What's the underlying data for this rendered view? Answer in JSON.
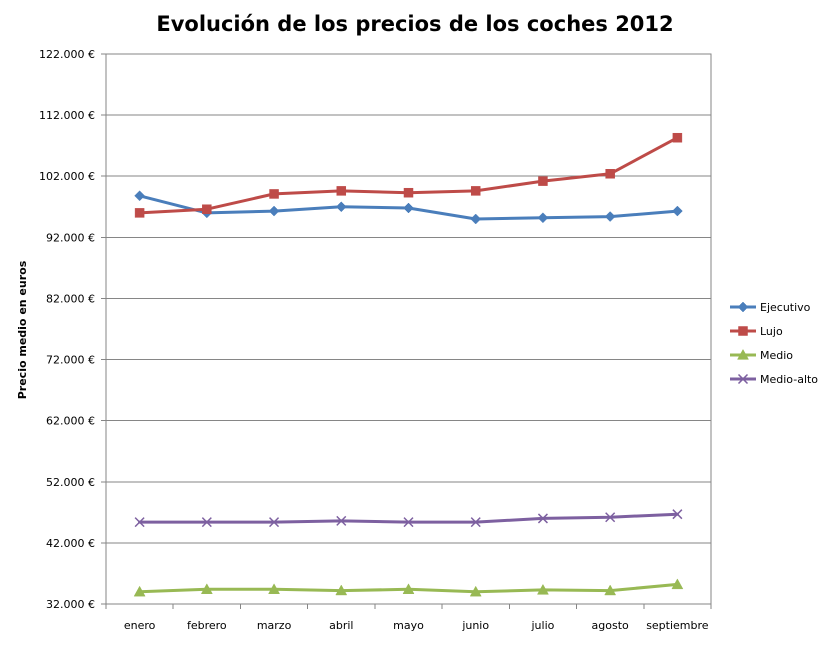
{
  "chart_data": {
    "type": "line",
    "title": "Evolución de los precios de los coches 2012",
    "xlabel": "",
    "ylabel": "Precio medio en euros",
    "ylim": [
      32000,
      122000
    ],
    "ytick_values": [
      32000,
      42000,
      52000,
      62000,
      72000,
      82000,
      92000,
      102000,
      112000,
      122000
    ],
    "ytick_labels": [
      "32.000 €",
      "42.000 €",
      "52.000 €",
      "62.000 €",
      "72.000 €",
      "82.000 €",
      "92.000 €",
      "102.000 €",
      "112.000 €",
      "122.000 €"
    ],
    "grid": true,
    "legend_position": "right",
    "categories": [
      "enero",
      "febrero",
      "marzo",
      "abril",
      "mayo",
      "junio",
      "julio",
      "agosto",
      "septiembre"
    ],
    "series": [
      {
        "name": "Ejecutivo",
        "color": "#4a7ebb",
        "marker": "diamond",
        "values": [
          98800,
          96000,
          96300,
          97000,
          96800,
          95000,
          95200,
          95400,
          96300
        ]
      },
      {
        "name": "Lujo",
        "color": "#be4b48",
        "marker": "square",
        "values": [
          96000,
          96600,
          99100,
          99600,
          99300,
          99600,
          101200,
          102400,
          108300
        ]
      },
      {
        "name": "Medio",
        "color": "#98b954",
        "marker": "triangle",
        "values": [
          34000,
          34400,
          34400,
          34200,
          34400,
          34000,
          34300,
          34200,
          35200
        ]
      },
      {
        "name": "Medio-alto",
        "color": "#7d60a0",
        "marker": "x",
        "values": [
          45400,
          45400,
          45400,
          45600,
          45400,
          45400,
          46000,
          46200,
          46700
        ]
      }
    ]
  }
}
